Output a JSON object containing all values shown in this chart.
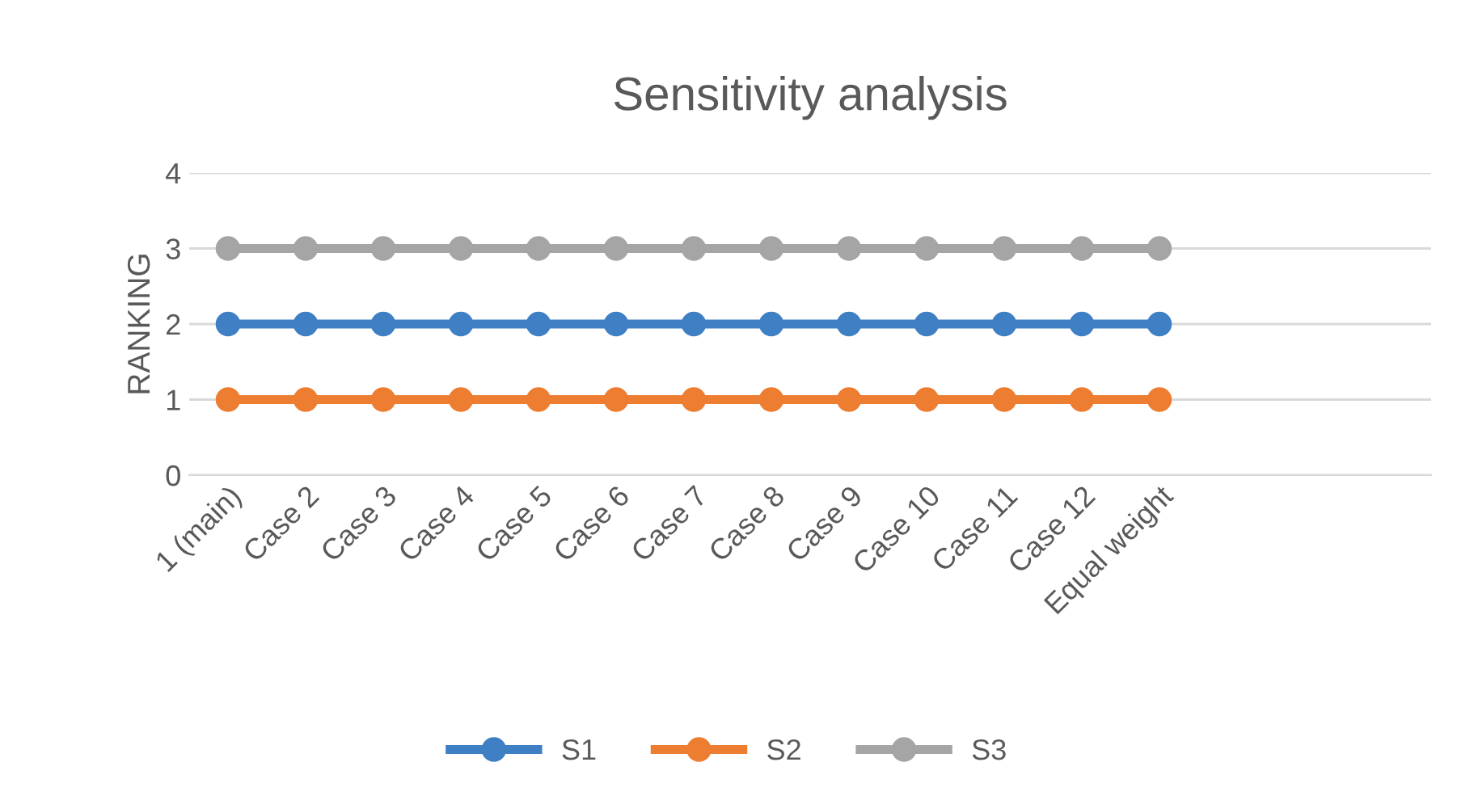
{
  "chart_data": {
    "type": "line",
    "title": "Sensitivity analysis",
    "ylabel": "RANKING",
    "categories": [
      "1 (main)",
      "Case 2",
      "Case 3",
      "Case 4",
      "Case 5",
      "Case 6",
      "Case 7",
      "Case 8",
      "Case 9",
      "Case 10",
      "Case 11",
      "Case 12",
      "Equal weight",
      null,
      null,
      null
    ],
    "series": [
      {
        "name": "S1",
        "color": "#3f7fc4",
        "values": [
          2,
          2,
          2,
          2,
          2,
          2,
          2,
          2,
          2,
          2,
          2,
          2,
          2,
          null,
          null,
          null
        ]
      },
      {
        "name": "S2",
        "color": "#ed7d31",
        "values": [
          1,
          1,
          1,
          1,
          1,
          1,
          1,
          1,
          1,
          1,
          1,
          1,
          1,
          null,
          null,
          null
        ]
      },
      {
        "name": "S3",
        "color": "#a5a5a5",
        "values": [
          3,
          3,
          3,
          3,
          3,
          3,
          3,
          3,
          3,
          3,
          3,
          3,
          3,
          null,
          null,
          null
        ]
      }
    ],
    "ylim": [
      0,
      4
    ],
    "yticks": [
      0,
      1,
      2,
      3,
      4
    ],
    "grid": "y",
    "legend": "bottom",
    "marker": "circle",
    "line_style": "solid"
  }
}
